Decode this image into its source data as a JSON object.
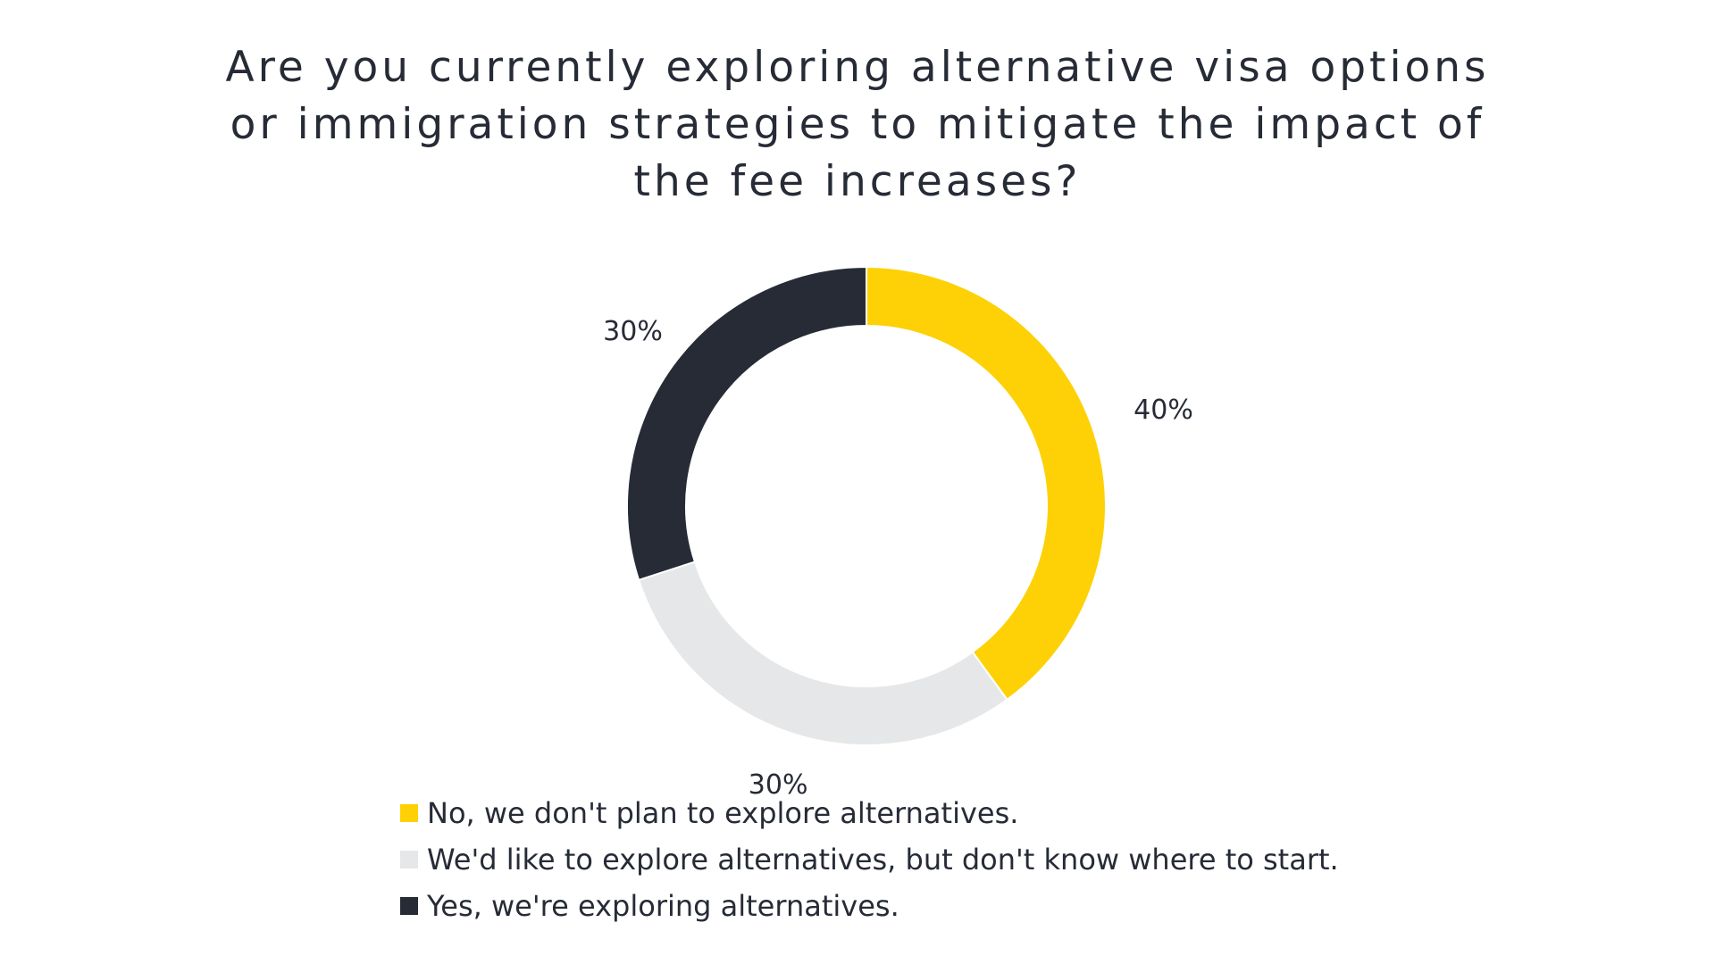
{
  "chart_data": {
    "type": "pie",
    "title_lines": [
      "Are you currently exploring alternative visa options",
      "or immigration strategies to mitigate the impact of",
      "the fee increases?"
    ],
    "donut": true,
    "legend_position": "bottom",
    "slices": [
      {
        "label": "No, we don't plan to explore alternatives.",
        "value": 40,
        "value_label": "40%",
        "color": "#fdd105"
      },
      {
        "label": "We'd like to explore alternatives, but don't know where to start.",
        "value": 30,
        "value_label": "30%",
        "color": "#e6e7e8"
      },
      {
        "label": "Yes, we're exploring alternatives.",
        "value": 30,
        "value_label": "30%",
        "color": "#262b36"
      }
    ]
  }
}
